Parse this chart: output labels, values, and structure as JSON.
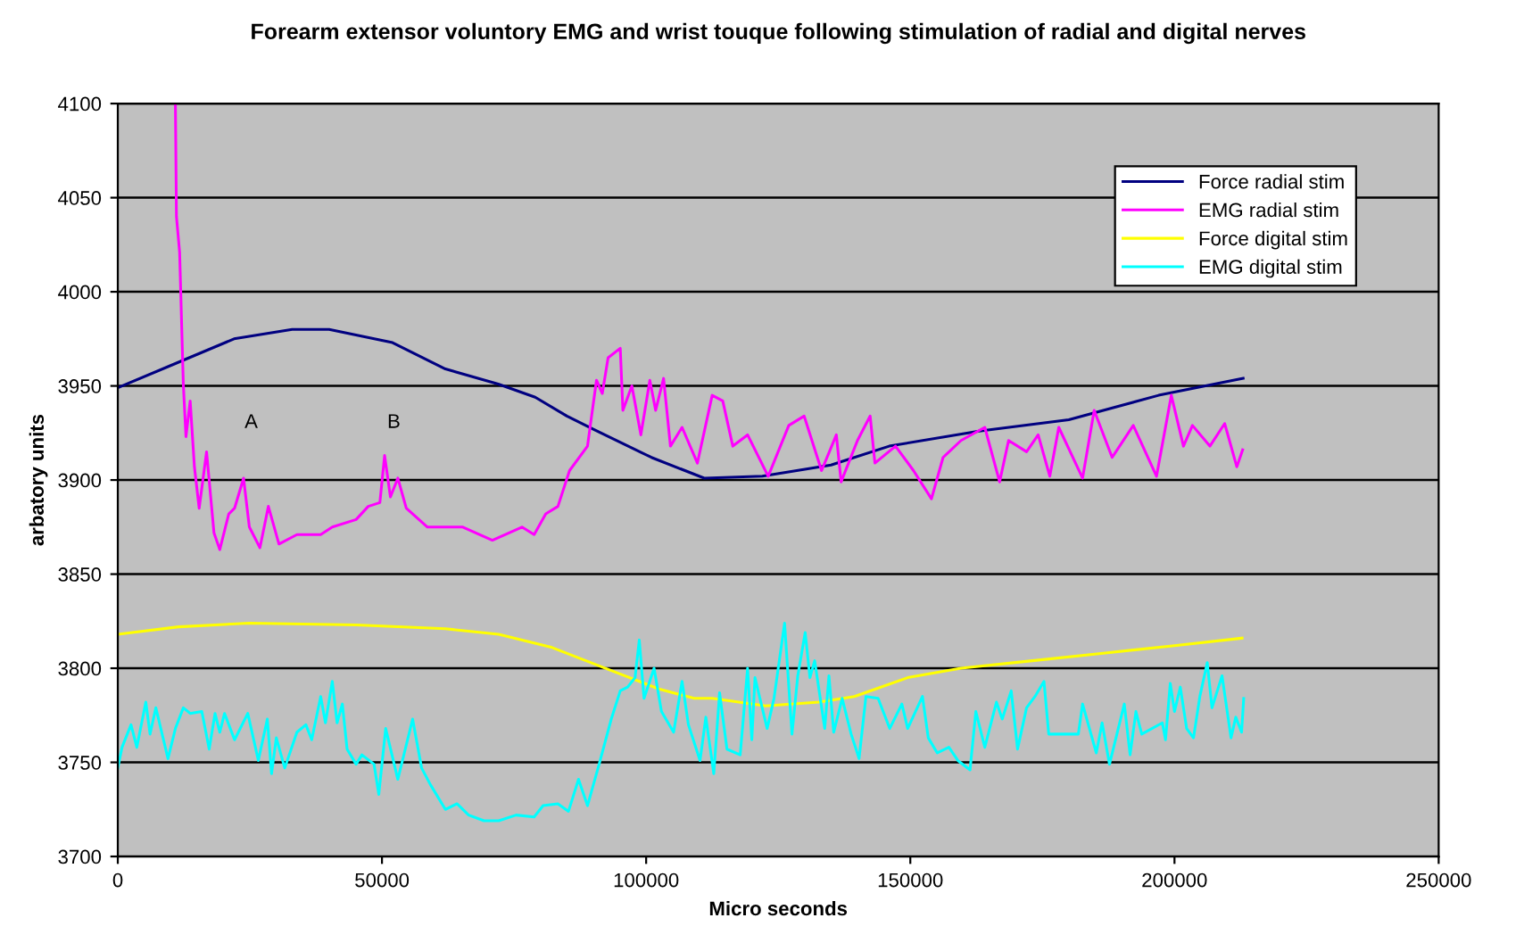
{
  "chart_data": {
    "type": "line",
    "title": "Forearm extensor voluntory EMG and wrist touque following stimulation of radial and digital nerves",
    "xlabel": "Micro seconds",
    "ylabel": "arbatory units",
    "xlim": [
      0,
      250000
    ],
    "xticks": [
      0,
      50000,
      100000,
      150000,
      200000,
      250000
    ],
    "ylim": [
      3700,
      4100
    ],
    "yticks": [
      3700,
      3750,
      3800,
      3850,
      3900,
      3950,
      4000,
      4050,
      4100
    ],
    "grid": "y",
    "legend": "top right",
    "marker": "none",
    "line_style": "solid",
    "annotations": [
      "A",
      "B"
    ],
    "series": [
      {
        "name": "Force radial stim",
        "color": "#000080",
        "x": [
          0,
          11000,
          22000,
          33000,
          40000,
          52000,
          62000,
          72000,
          79000,
          85000,
          90000,
          101000,
          111000,
          122000,
          135000,
          146000,
          163000,
          180000,
          197000,
          213000
        ],
        "values": [
          3949,
          3962,
          3975,
          3980,
          3980,
          3973,
          3959,
          3951,
          3944,
          3934,
          3927,
          3912,
          3901,
          3902,
          3908,
          3918,
          3926,
          3932,
          3945,
          3954
        ]
      },
      {
        "name": "EMG radial stim",
        "color": "#ff00ff",
        "x": [
          10900,
          11100,
          11700,
          12400,
          12900,
          13700,
          14500,
          15400,
          16800,
          18200,
          19300,
          21000,
          22100,
          23800,
          24900,
          26900,
          28500,
          30500,
          33900,
          38400,
          40600,
          45100,
          47400,
          49600,
          50500,
          51600,
          53000,
          54600,
          58600,
          65300,
          70900,
          76500,
          78800,
          81000,
          83300,
          85500,
          88900,
          90600,
          91700,
          92800,
          95100,
          95600,
          97300,
          99000,
          100700,
          101800,
          103300,
          104600,
          106800,
          109700,
          112500,
          114500,
          116400,
          119200,
          123100,
          127000,
          129900,
          133200,
          136000,
          136900,
          140000,
          142400,
          143300,
          147200,
          150600,
          154000,
          156200,
          159600,
          164100,
          166900,
          168600,
          172000,
          174200,
          176400,
          178100,
          182600,
          184800,
          188200,
          192200,
          196600,
          199400,
          201700,
          203400,
          206700,
          209500,
          211800,
          212900
        ],
        "values": [
          4100,
          4040,
          4021,
          3951,
          3923,
          3942,
          3907,
          3885,
          3915,
          3872,
          3863,
          3882,
          3885,
          3901,
          3875,
          3864,
          3886,
          3866,
          3871,
          3871,
          3875,
          3879,
          3886,
          3888,
          3913,
          3891,
          3901,
          3885,
          3875,
          3875,
          3868,
          3875,
          3871,
          3882,
          3886,
          3905,
          3918,
          3953,
          3946,
          3965,
          3970,
          3937,
          3950,
          3924,
          3953,
          3937,
          3954,
          3918,
          3928,
          3909,
          3945,
          3942,
          3918,
          3924,
          3902,
          3929,
          3934,
          3905,
          3924,
          3899,
          3921,
          3934,
          3909,
          3918,
          3905,
          3890,
          3912,
          3921,
          3928,
          3899,
          3921,
          3915,
          3924,
          3902,
          3928,
          3901,
          3937,
          3912,
          3929,
          3902,
          3945,
          3918,
          3929,
          3918,
          3930,
          3907,
          3916
        ]
      },
      {
        "name": "Force digital stim",
        "color": "#ffff00",
        "x": [
          0,
          11500,
          24900,
          45100,
          62000,
          72100,
          82200,
          92300,
          102400,
          109100,
          112500,
          122600,
          132700,
          139400,
          149500,
          159600,
          173100,
          186500,
          200000,
          212800
        ],
        "values": [
          3818,
          3822,
          3824,
          3823,
          3821,
          3818,
          3811,
          3800,
          3789,
          3784,
          3784,
          3780,
          3782,
          3785,
          3795,
          3800,
          3804,
          3808,
          3812,
          3816
        ]
      },
      {
        "name": "EMG digital stim",
        "color": "#00ffff",
        "x": [
          0,
          800,
          2500,
          3600,
          5300,
          6100,
          7200,
          9500,
          10900,
          12400,
          13700,
          15900,
          17300,
          18400,
          19300,
          20200,
          22100,
          24600,
          26600,
          28300,
          29100,
          30000,
          31600,
          33900,
          35600,
          36700,
          38400,
          39300,
          40600,
          41500,
          42500,
          43400,
          45100,
          46200,
          48500,
          49400,
          50700,
          53000,
          55800,
          57500,
          59200,
          62000,
          64200,
          66400,
          69300,
          72100,
          75400,
          78800,
          80500,
          83300,
          85300,
          87200,
          88900,
          91100,
          93400,
          95100,
          96500,
          97900,
          98700,
          99600,
          101500,
          102900,
          105200,
          106800,
          108000,
          110200,
          111300,
          112800,
          113900,
          115300,
          117800,
          119200,
          120000,
          120600,
          122900,
          124200,
          126200,
          127600,
          128700,
          130100,
          131000,
          131900,
          133800,
          134600,
          135500,
          137100,
          138800,
          140300,
          141600,
          143900,
          146100,
          148400,
          149500,
          152300,
          153400,
          155100,
          157300,
          159000,
          161300,
          162400,
          164100,
          166300,
          167400,
          169100,
          170300,
          172000,
          173600,
          175300,
          176200,
          179200,
          181800,
          182600,
          185200,
          186300,
          187700,
          190500,
          191600,
          192700,
          193800,
          197700,
          198300,
          199200,
          200000,
          201100,
          202300,
          203600,
          204800,
          206200,
          207100,
          209000,
          210700,
          211600,
          212700,
          213100
        ],
        "values": [
          3747,
          3758,
          3770,
          3758,
          3782,
          3765,
          3779,
          3752,
          3768,
          3779,
          3776,
          3777,
          3757,
          3776,
          3766,
          3776,
          3762,
          3776,
          3751,
          3773,
          3744,
          3763,
          3747,
          3766,
          3770,
          3762,
          3785,
          3771,
          3793,
          3771,
          3781,
          3757,
          3749,
          3754,
          3749,
          3733,
          3768,
          3741,
          3773,
          3747,
          3738,
          3725,
          3728,
          3722,
          3719,
          3719,
          3722,
          3721,
          3727,
          3728,
          3724,
          3741,
          3727,
          3749,
          3773,
          3788,
          3790,
          3795,
          3815,
          3784,
          3800,
          3777,
          3766,
          3793,
          3770,
          3751,
          3774,
          3744,
          3787,
          3757,
          3754,
          3800,
          3762,
          3795,
          3768,
          3784,
          3824,
          3765,
          3796,
          3819,
          3795,
          3804,
          3768,
          3796,
          3766,
          3784,
          3765,
          3752,
          3785,
          3784,
          3768,
          3781,
          3768,
          3785,
          3763,
          3755,
          3758,
          3751,
          3746,
          3777,
          3758,
          3782,
          3773,
          3788,
          3757,
          3779,
          3785,
          3793,
          3765,
          3765,
          3765,
          3781,
          3755,
          3771,
          3749,
          3781,
          3754,
          3777,
          3765,
          3771,
          3762,
          3792,
          3777,
          3790,
          3768,
          3763,
          3785,
          3803,
          3779,
          3796,
          3763,
          3774,
          3766,
          3784
        ]
      }
    ]
  }
}
